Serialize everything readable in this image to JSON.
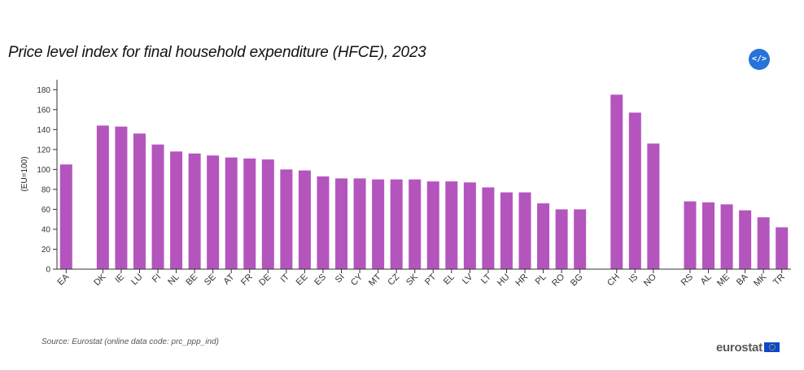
{
  "title": "Price level index for final household expenditure (HFCE), 2023",
  "embed_icon": "</>",
  "source": "Source: Eurostat (online data code: prc_ppp_ind)",
  "logo_text": "eurostat",
  "colors": {
    "bar": "#b455be",
    "axis": "#333333",
    "accent": "#2673d9"
  },
  "chart_data": {
    "type": "bar",
    "title": "Price level index for final household expenditure (HFCE), 2023",
    "xlabel": "",
    "ylabel": "(EU=100)",
    "ylim": [
      0,
      190
    ],
    "yticks": [
      0,
      20,
      40,
      60,
      80,
      100,
      120,
      140,
      160,
      180
    ],
    "grid": false,
    "categories": [
      "EA",
      "",
      "DK",
      "IE",
      "LU",
      "FI",
      "NL",
      "BE",
      "SE",
      "AT",
      "FR",
      "DE",
      "IT",
      "EE",
      "ES",
      "SI",
      "CY",
      "MT",
      "CZ",
      "SK",
      "PT",
      "EL",
      "LV",
      "LT",
      "HU",
      "HR",
      "PL",
      "RO",
      "BG",
      "",
      "CH",
      "IS",
      "NO",
      "",
      "RS",
      "AL",
      "ME",
      "BA",
      "MK",
      "TR"
    ],
    "values": [
      105,
      null,
      144,
      143,
      136,
      125,
      118,
      116,
      114,
      112,
      111,
      110,
      100,
      99,
      93,
      91,
      91,
      90,
      90,
      90,
      88,
      88,
      87,
      82,
      77,
      77,
      66,
      60,
      60,
      null,
      175,
      157,
      126,
      null,
      68,
      67,
      65,
      59,
      52,
      42
    ]
  }
}
